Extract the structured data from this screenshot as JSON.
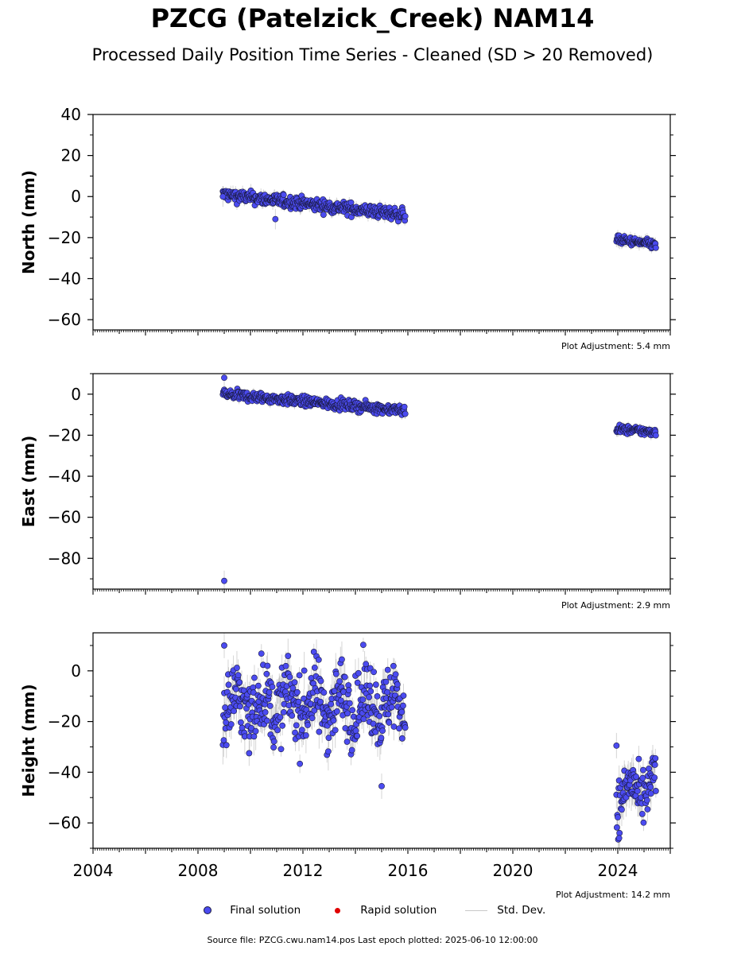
{
  "title": "PZCG (Patelzick_Creek) NAM14",
  "subtitle": "Processed Daily Position Time Series - Cleaned (SD > 20 Removed)",
  "source_text": "Source file: PZCG.cwu.nam14.pos  Last epoch plotted: 2025-06-10 12:00:00",
  "legend": {
    "final": "Final solution",
    "rapid": "Rapid solution",
    "std": "Std. Dev."
  },
  "colors": {
    "final": "#4b4bf0",
    "final_edge": "#1a1a40",
    "rapid": "#e00000",
    "std": "#c8c8c8"
  },
  "chart_data": [
    {
      "type": "scatter",
      "ylabel": "North (mm)",
      "adjustment": "Plot Adjustment: 5.4 mm",
      "xlim": [
        2004,
        2026
      ],
      "ylim": [
        -65,
        40
      ],
      "yticks": [
        40,
        20,
        0,
        -20,
        -40,
        -60
      ],
      "segments": [
        {
          "x0": 2008.95,
          "x1": 2015.9,
          "y0": 1.0,
          "y1": -9.0,
          "spread": 1.5,
          "err": 2.5
        },
        {
          "x0": 2023.95,
          "x1": 2025.45,
          "y0": -21.0,
          "y1": -23.5,
          "spread": 1.0,
          "err": 2.5
        }
      ],
      "outliers": [
        [
          2010.95,
          -11
        ],
        [
          2008.95,
          0
        ]
      ]
    },
    {
      "type": "scatter",
      "ylabel": "East (mm)",
      "adjustment": "Plot Adjustment: 2.9 mm",
      "xlim": [
        2004,
        2026
      ],
      "ylim": [
        -95,
        10
      ],
      "yticks": [
        0,
        -20,
        -40,
        -60,
        -80
      ],
      "segments": [
        {
          "x0": 2008.95,
          "x1": 2015.9,
          "y0": 0.0,
          "y1": -8.0,
          "spread": 1.2,
          "err": 2.0
        },
        {
          "x0": 2023.95,
          "x1": 2025.45,
          "y0": -17.0,
          "y1": -18.5,
          "spread": 1.0,
          "err": 2.0
        }
      ],
      "outliers": [
        [
          2009.0,
          8
        ],
        [
          2009.0,
          -91
        ]
      ]
    },
    {
      "type": "scatter",
      "ylabel": "Height (mm)",
      "adjustment": "Plot Adjustment: 14.2 mm",
      "xlim": [
        2004,
        2026
      ],
      "ylim": [
        -70,
        15
      ],
      "yticks": [
        0,
        -20,
        -40,
        -60
      ],
      "xticks": [
        2004,
        2008,
        2012,
        2016,
        2020,
        2024
      ],
      "segments": [
        {
          "x0": 2008.95,
          "x1": 2015.9,
          "y0": -13.0,
          "y1": -13.0,
          "spread": 7.0,
          "err": 6.0,
          "seasonal": 8.0
        },
        {
          "x0": 2023.95,
          "x1": 2025.45,
          "y0": -50.0,
          "y1": -45.0,
          "spread": 5.0,
          "err": 6.0,
          "seasonal": 8.0
        }
      ],
      "outliers": [
        [
          2009.0,
          10
        ],
        [
          2015.0,
          -45.5
        ],
        [
          2023.95,
          -29.5
        ],
        [
          2009.95,
          -32.5
        ],
        [
          2024.05,
          -66
        ]
      ]
    }
  ]
}
